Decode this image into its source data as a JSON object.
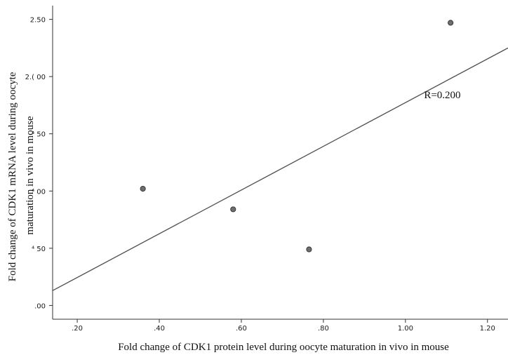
{
  "chart_data": {
    "type": "scatter",
    "title": "",
    "xlabel": "Fold change of CDK1 protein level during oocyte maturation in vivo in mouse",
    "ylabel": [
      "Fold change of CDK1 mRNA level during  oocyte",
      "maturation in vivo in mouse"
    ],
    "x_ticks": [
      ".20",
      ".40",
      ".60",
      ".80",
      "1.00",
      "1.20"
    ],
    "y_ticks": [
      ".00",
      ".50",
      "1.00",
      "1.50",
      "2.00",
      "2.50"
    ],
    "y_ticks_visible": [
      ".00",
      "⁴ 50",
      "⁴ 00",
      "⁴ 50",
      "2.( 00",
      "2.50"
    ],
    "xlim": [
      0.14,
      1.25
    ],
    "ylim": [
      -0.12,
      2.62
    ],
    "grid": false,
    "points": [
      {
        "x": 0.36,
        "y": 1.02
      },
      {
        "x": 0.58,
        "y": 0.84
      },
      {
        "x": 0.765,
        "y": 0.49
      },
      {
        "x": 1.11,
        "y": 2.47
      }
    ],
    "fit_line": {
      "x": [
        0.14,
        1.25
      ],
      "y": [
        0.13,
        2.25
      ]
    },
    "annotation": "R=0.200",
    "annotation_at": {
      "x": 1.09,
      "y": 1.81
    },
    "marker_color": "#6e6e6e",
    "line_color": "#4d4d4d"
  }
}
